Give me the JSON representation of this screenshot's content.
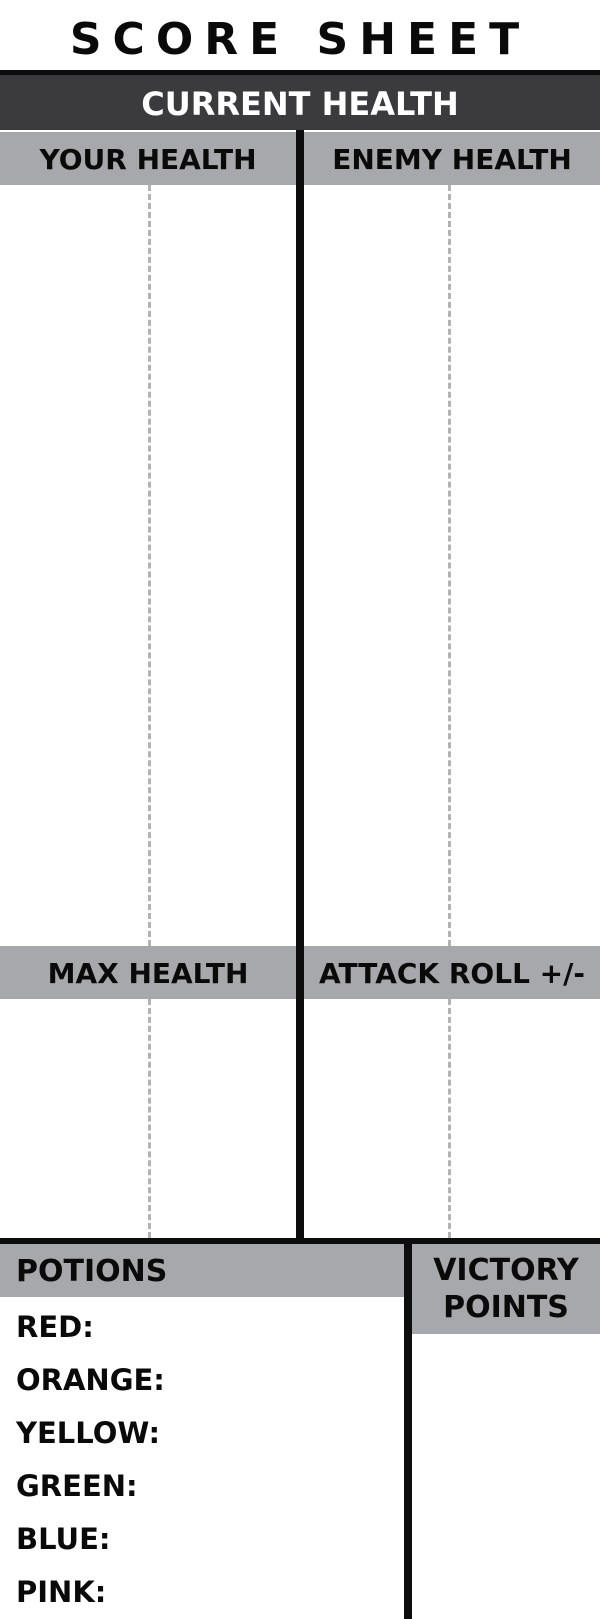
{
  "sheet": {
    "title": "SCORE SHEET",
    "banner": "CURRENT HEALTH"
  },
  "columns": {
    "your_health": "YOUR HEALTH",
    "enemy_health": "ENEMY HEALTH",
    "max_health": "MAX HEALTH",
    "attack_roll": "ATTACK ROLL +/-"
  },
  "potions": {
    "heading": "POTIONS",
    "items": [
      "RED:",
      "ORANGE:",
      "YELLOW:",
      "GREEN:",
      "BLUE:",
      "PINK:"
    ]
  },
  "victory": {
    "line1": "VICTORY",
    "line2": "POINTS"
  },
  "colors": {
    "banner": "#3b3b3d",
    "subheader": "#a7a8ab",
    "rule": "#0d0d0d",
    "dashed_guide": "#b3b3b3"
  }
}
